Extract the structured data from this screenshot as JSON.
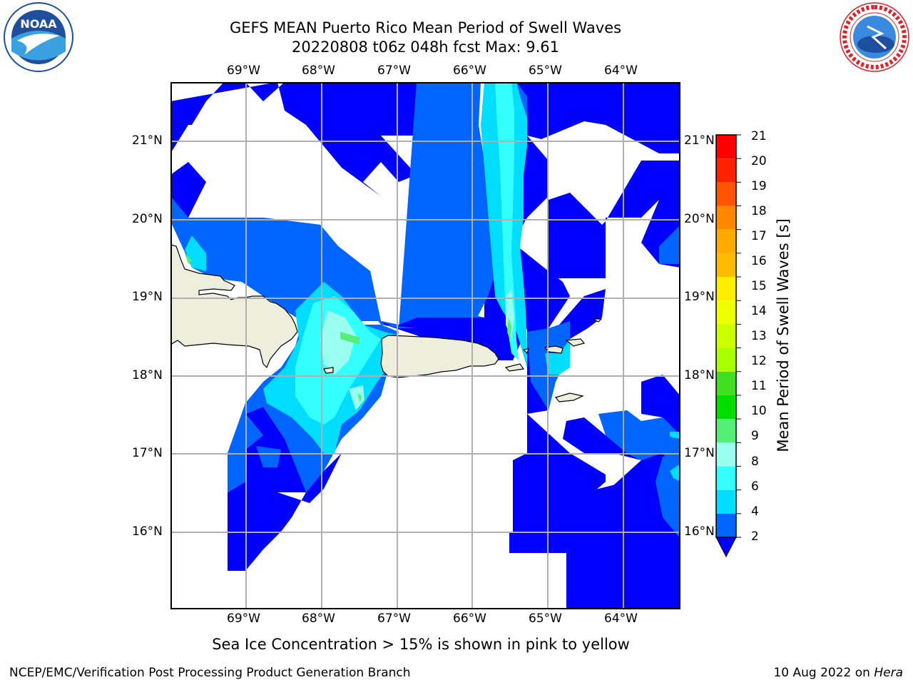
{
  "header": {
    "title_line1": "GEFS MEAN Puerto Rico Mean Period of Swell Waves",
    "title_line2": "20220808 t06z 048h fcst   Max: 9.61"
  },
  "logos": {
    "left": {
      "text": "NOAA",
      "color": "#1f4e9c"
    },
    "right": {
      "text": "NATIONAL WEATHER SERVICE",
      "color": "#e0202a"
    }
  },
  "map": {
    "lon_labels": [
      "69°W",
      "68°W",
      "67°W",
      "66°W",
      "65°W",
      "64°W"
    ],
    "lat_labels": [
      "21°N",
      "20°N",
      "19°N",
      "18°N",
      "17°N",
      "16°N"
    ],
    "ocean_color": "#0000ff",
    "land_color": "#eeeedd"
  },
  "colorbar": {
    "label": "Mean Period of Swell Waves [s]",
    "ticks": [
      "21",
      "20",
      "19",
      "18",
      "17",
      "16",
      "15",
      "14",
      "13",
      "12",
      "11",
      "10",
      "9",
      "8",
      "6",
      "4",
      "2"
    ],
    "levels": [
      {
        "range": "2-4",
        "color": "#0066ff"
      },
      {
        "range": "4-6",
        "color": "#00ddff"
      },
      {
        "range": "6-8",
        "color": "#33ffff"
      },
      {
        "range": "8-9",
        "color": "#99ffee"
      },
      {
        "range": "9-10",
        "color": "#55ee77"
      },
      {
        "range": "10-11",
        "color": "#00dd00"
      },
      {
        "range": "11-12",
        "color": "#44dd22"
      },
      {
        "range": "12-13",
        "color": "#aaff00"
      },
      {
        "range": "13-14",
        "color": "#ccff00"
      },
      {
        "range": "14-15",
        "color": "#eeff00"
      },
      {
        "range": "15-16",
        "color": "#ffee00"
      },
      {
        "range": "16-17",
        "color": "#ffbb00"
      },
      {
        "range": "17-18",
        "color": "#ffaa00"
      },
      {
        "range": "18-19",
        "color": "#ff8800"
      },
      {
        "range": "19-20",
        "color": "#ff5500"
      },
      {
        "range": "20-21",
        "color": "#ff2200"
      },
      {
        "range": ">21",
        "color": "#ff0000"
      }
    ],
    "under_color": "#0000ff"
  },
  "footer": {
    "note": "Sea Ice Concentration > 15% is shown in pink to yellow",
    "left": "NCEP/EMC/Verification Post Processing Product Generation Branch",
    "right_prefix": "10 Aug 2022 on ",
    "right_host": "Hera"
  }
}
